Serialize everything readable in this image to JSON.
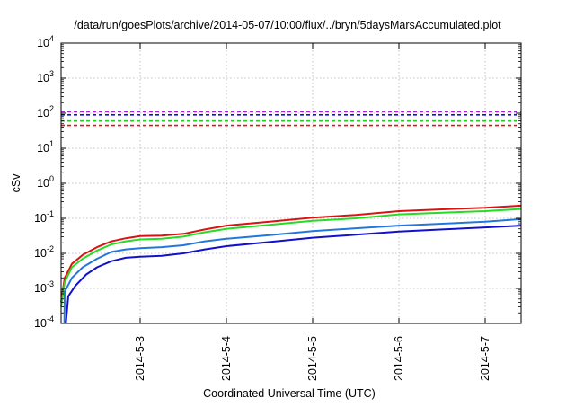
{
  "chart_data": {
    "type": "line",
    "title": "/data/run/goesPlots/archive/2014-05-07/10:00/flux/../bryn/5daysMarsAccumulated.plot",
    "xlabel": "Coordinated Universal Time (UTC)",
    "ylabel": "cSv",
    "x_scale": "time",
    "y_scale": "log",
    "xlim": [
      "2014-05-02T02:00",
      "2014-05-07T10:00"
    ],
    "ylim": [
      0.0001,
      10000
    ],
    "x_ticks": [
      {
        "t": "2014-05-03T00:00",
        "label": "2014-5-3"
      },
      {
        "t": "2014-05-04T00:00",
        "label": "2014-5-4"
      },
      {
        "t": "2014-05-05T00:00",
        "label": "2014-5-5"
      },
      {
        "t": "2014-05-06T00:00",
        "label": "2014-5-6"
      },
      {
        "t": "2014-05-07T00:00",
        "label": "2014-5-7"
      }
    ],
    "y_ticks": [
      {
        "value": 0.0001,
        "mantissa": "10",
        "exp": "-4"
      },
      {
        "value": 0.001,
        "mantissa": "10",
        "exp": "-3"
      },
      {
        "value": 0.01,
        "mantissa": "10",
        "exp": "-2"
      },
      {
        "value": 0.1,
        "mantissa": "10",
        "exp": "-1"
      },
      {
        "value": 1,
        "mantissa": "10",
        "exp": "0"
      },
      {
        "value": 10,
        "mantissa": "10",
        "exp": "1"
      },
      {
        "value": 100,
        "mantissa": "10",
        "exp": "2"
      },
      {
        "value": 1000,
        "mantissa": "10",
        "exp": "3"
      },
      {
        "value": 10000,
        "mantissa": "10",
        "exp": "4"
      }
    ],
    "grid": true,
    "reference_lines": [
      {
        "value": 110,
        "color": "#aa22dd",
        "style": "dashed"
      },
      {
        "value": 90,
        "color": "#1111dd",
        "style": "dashed"
      },
      {
        "value": 60,
        "color": "#22cc22",
        "style": "dashed"
      },
      {
        "value": 45,
        "color": "#ee1111",
        "style": "dashed"
      }
    ],
    "series": [
      {
        "color": "#dd1111",
        "points": [
          [
            "2014-05-02T02:00",
            0.0004
          ],
          [
            "2014-05-02T03:00",
            0.002
          ],
          [
            "2014-05-02T05:00",
            0.005
          ],
          [
            "2014-05-02T08:00",
            0.009
          ],
          [
            "2014-05-02T12:00",
            0.015
          ],
          [
            "2014-05-02T16:00",
            0.022
          ],
          [
            "2014-05-02T20:00",
            0.027
          ],
          [
            "2014-05-03T00:00",
            0.031
          ],
          [
            "2014-05-03T06:00",
            0.032
          ],
          [
            "2014-05-03T12:00",
            0.036
          ],
          [
            "2014-05-03T18:00",
            0.048
          ],
          [
            "2014-05-04T00:00",
            0.062
          ],
          [
            "2014-05-04T12:00",
            0.08
          ],
          [
            "2014-05-05T00:00",
            0.105
          ],
          [
            "2014-05-05T12:00",
            0.125
          ],
          [
            "2014-05-06T00:00",
            0.16
          ],
          [
            "2014-05-06T12:00",
            0.18
          ],
          [
            "2014-05-07T00:00",
            0.2
          ],
          [
            "2014-05-07T10:00",
            0.23
          ]
        ]
      },
      {
        "color": "#22dd22",
        "points": [
          [
            "2014-05-02T02:00",
            0.0003
          ],
          [
            "2014-05-02T03:00",
            0.0015
          ],
          [
            "2014-05-02T05:00",
            0.004
          ],
          [
            "2014-05-02T08:00",
            0.007
          ],
          [
            "2014-05-02T12:00",
            0.012
          ],
          [
            "2014-05-02T16:00",
            0.018
          ],
          [
            "2014-05-02T20:00",
            0.022
          ],
          [
            "2014-05-03T00:00",
            0.025
          ],
          [
            "2014-05-03T06:00",
            0.026
          ],
          [
            "2014-05-03T12:00",
            0.03
          ],
          [
            "2014-05-03T18:00",
            0.04
          ],
          [
            "2014-05-04T00:00",
            0.05
          ],
          [
            "2014-05-04T12:00",
            0.065
          ],
          [
            "2014-05-05T00:00",
            0.085
          ],
          [
            "2014-05-05T12:00",
            0.1
          ],
          [
            "2014-05-06T00:00",
            0.13
          ],
          [
            "2014-05-06T12:00",
            0.145
          ],
          [
            "2014-05-07T00:00",
            0.16
          ],
          [
            "2014-05-07T10:00",
            0.185
          ]
        ]
      },
      {
        "color": "#2277dd",
        "points": [
          [
            "2014-05-02T02:55",
            0.0001
          ],
          [
            "2014-05-02T03:00",
            0.0008
          ],
          [
            "2014-05-02T05:00",
            0.002
          ],
          [
            "2014-05-02T08:00",
            0.004
          ],
          [
            "2014-05-02T12:00",
            0.007
          ],
          [
            "2014-05-02T16:00",
            0.011
          ],
          [
            "2014-05-02T20:00",
            0.013
          ],
          [
            "2014-05-03T00:00",
            0.014
          ],
          [
            "2014-05-03T06:00",
            0.015
          ],
          [
            "2014-05-03T12:00",
            0.017
          ],
          [
            "2014-05-03T18:00",
            0.022
          ],
          [
            "2014-05-04T00:00",
            0.026
          ],
          [
            "2014-05-04T12:00",
            0.033
          ],
          [
            "2014-05-05T00:00",
            0.043
          ],
          [
            "2014-05-05T12:00",
            0.052
          ],
          [
            "2014-05-06T00:00",
            0.062
          ],
          [
            "2014-05-06T12:00",
            0.07
          ],
          [
            "2014-05-07T00:00",
            0.08
          ],
          [
            "2014-05-07T10:00",
            0.095
          ]
        ]
      },
      {
        "color": "#1111cc",
        "points": [
          [
            "2014-05-02T03:20",
            0.0001
          ],
          [
            "2014-05-02T04:00",
            0.0006
          ],
          [
            "2014-05-02T06:00",
            0.0012
          ],
          [
            "2014-05-02T09:00",
            0.0025
          ],
          [
            "2014-05-02T12:00",
            0.004
          ],
          [
            "2014-05-02T16:00",
            0.006
          ],
          [
            "2014-05-02T20:00",
            0.0075
          ],
          [
            "2014-05-03T00:00",
            0.008
          ],
          [
            "2014-05-03T06:00",
            0.0085
          ],
          [
            "2014-05-03T12:00",
            0.01
          ],
          [
            "2014-05-03T18:00",
            0.013
          ],
          [
            "2014-05-04T00:00",
            0.016
          ],
          [
            "2014-05-04T12:00",
            0.021
          ],
          [
            "2014-05-05T00:00",
            0.028
          ],
          [
            "2014-05-05T12:00",
            0.034
          ],
          [
            "2014-05-06T00:00",
            0.042
          ],
          [
            "2014-05-06T12:00",
            0.048
          ],
          [
            "2014-05-07T00:00",
            0.055
          ],
          [
            "2014-05-07T10:00",
            0.062
          ]
        ]
      }
    ]
  }
}
